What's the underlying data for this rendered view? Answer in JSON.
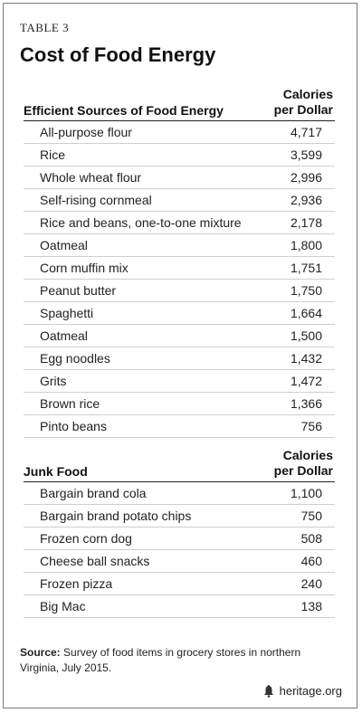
{
  "table_label": "TABLE 3",
  "title": "Cost of Food Energy",
  "sections": [
    {
      "title": "Efficient Sources of Food Energy",
      "column_header": [
        "Calories",
        "per Dollar"
      ],
      "rows": [
        {
          "name": "All-purpose flour",
          "value": "4,717"
        },
        {
          "name": "Rice",
          "value": "3,599"
        },
        {
          "name": "Whole wheat flour",
          "value": "2,996"
        },
        {
          "name": "Self-rising cornmeal",
          "value": "2,936"
        },
        {
          "name": "Rice and beans, one-to-one mixture",
          "value": "2,178"
        },
        {
          "name": "Oatmeal",
          "value": "1,800"
        },
        {
          "name": "Corn muffin mix",
          "value": "1,751"
        },
        {
          "name": "Peanut butter",
          "value": "1,750"
        },
        {
          "name": "Spaghetti",
          "value": "1,664"
        },
        {
          "name": "Oatmeal",
          "value": "1,500"
        },
        {
          "name": "Egg noodles",
          "value": "1,432"
        },
        {
          "name": "Grits",
          "value": "1,472"
        },
        {
          "name": "Brown rice",
          "value": "1,366"
        },
        {
          "name": "Pinto beans",
          "value": "756"
        }
      ]
    },
    {
      "title": "Junk Food",
      "column_header": [
        "Calories",
        "per Dollar"
      ],
      "rows": [
        {
          "name": "Bargain brand cola",
          "value": "1,100"
        },
        {
          "name": "Bargain brand potato chips",
          "value": "750"
        },
        {
          "name": "Frozen corn dog",
          "value": "508"
        },
        {
          "name": "Cheese ball snacks",
          "value": "460"
        },
        {
          "name": "Frozen pizza",
          "value": "240"
        },
        {
          "name": "Big Mac",
          "value": "138"
        }
      ]
    }
  ],
  "source_label": "Source:",
  "source_text": "Survey of food items in grocery stores in northern Virginia, July 2015.",
  "brand": "heritage.org",
  "brand_icon": "liberty-bell-icon"
}
